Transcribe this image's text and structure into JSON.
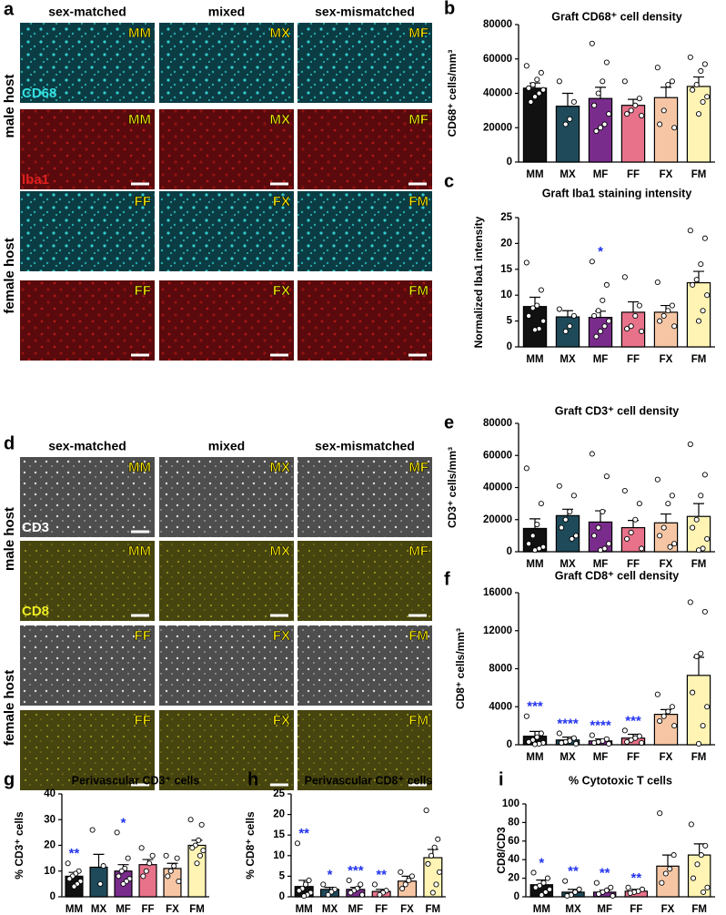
{
  "micrographs": [
    {
      "letter": "a",
      "columns": [
        "sex-matched",
        "mixed",
        "sex-mismatched"
      ],
      "rows": [
        "male host",
        "female host"
      ],
      "stains": [
        "CD68",
        "Iba1"
      ],
      "tiles": [
        [
          "MM",
          "MX",
          "MF"
        ],
        [
          "MM",
          "MX",
          "MF"
        ],
        [
          "FF",
          "FX",
          "FM"
        ],
        [
          "FF",
          "FX",
          "FM"
        ]
      ]
    },
    {
      "letter": "d",
      "columns": [
        "sex-matched",
        "mixed",
        "sex-mismatched"
      ],
      "rows": [
        "male host",
        "female host"
      ],
      "stains": [
        "CD3",
        "CD8"
      ],
      "tiles": [
        [
          "MM",
          "MX",
          "MF"
        ],
        [
          "MM",
          "MX",
          "MF"
        ],
        [
          "FF",
          "FX",
          "FM"
        ],
        [
          "FF",
          "FX",
          "FM"
        ]
      ]
    }
  ],
  "chart_data": [
    {
      "type": "bar",
      "panel": "b",
      "title": "Graft CD68⁺ cell density",
      "ylabel": "CD68⁺ cells/mm³",
      "categories": [
        "MM",
        "MX",
        "MF",
        "FF",
        "FX",
        "FM"
      ],
      "colors": [
        "#111111",
        "#1e4a5a",
        "#7a2c8c",
        "#e8728a",
        "#f6c6a4",
        "#fff4b3"
      ],
      "values": [
        43000,
        32500,
        37000,
        33000,
        37500,
        44000
      ],
      "errors": [
        3000,
        7500,
        6500,
        3500,
        6000,
        5500
      ],
      "points": [
        [
          56000,
          52000,
          48000,
          45000,
          43000,
          42000,
          40000,
          38000,
          35000
        ],
        [
          47000,
          35000,
          25000,
          22000
        ],
        [
          69000,
          58000,
          47000,
          40000,
          33000,
          28000,
          22000,
          20000,
          18000
        ],
        [
          47000,
          37000,
          33000,
          30000,
          28000,
          27000
        ],
        [
          55000,
          47000,
          45000,
          30000,
          22000,
          20000
        ],
        [
          61000,
          57000,
          53000,
          45000,
          42000,
          38000,
          35000,
          28000
        ]
      ],
      "significance": [
        null,
        null,
        null,
        null,
        null,
        null
      ],
      "ylim": [
        0,
        80000
      ],
      "yticks": [
        0,
        20000,
        40000,
        60000,
        80000
      ]
    },
    {
      "type": "bar",
      "panel": "c",
      "title": "Graft Iba1 staining intensity",
      "ylabel": "Normalized Iba1 intensity",
      "categories": [
        "MM",
        "MX",
        "MF",
        "FF",
        "FX",
        "FM"
      ],
      "colors": [
        "#111111",
        "#1e4a5a",
        "#7a2c8c",
        "#e8728a",
        "#f6c6a4",
        "#fff4b3"
      ],
      "values": [
        7.8,
        5.8,
        5.7,
        6.7,
        6.7,
        12.4
      ],
      "errors": [
        1.8,
        1.2,
        1.2,
        2,
        1.3,
        2.2
      ],
      "points": [
        [
          16.3,
          11,
          8,
          7.5,
          6,
          5,
          3.5,
          3.3
        ],
        [
          7.3,
          6,
          4,
          3
        ],
        [
          16.5,
          12,
          9,
          7,
          6,
          5,
          4,
          3,
          2
        ],
        [
          13.5,
          8,
          6,
          4,
          3.5,
          3
        ],
        [
          12.5,
          8,
          7,
          6,
          5,
          4
        ],
        [
          22.5,
          21,
          16,
          13,
          12,
          10,
          7,
          5
        ]
      ],
      "significance": [
        null,
        null,
        "*",
        null,
        null,
        null
      ],
      "ylim": [
        0,
        25
      ],
      "yticks": [
        0,
        5,
        10,
        15,
        20,
        25
      ]
    },
    {
      "type": "bar",
      "panel": "e",
      "title": "Graft CD3⁺ cell density",
      "ylabel": "CD3⁺ cells/mm³",
      "categories": [
        "MM",
        "MX",
        "MF",
        "FF",
        "FX",
        "FM"
      ],
      "colors": [
        "#111111",
        "#1e4a5a",
        "#7a2c8c",
        "#e8728a",
        "#f6c6a4",
        "#fff4b3"
      ],
      "values": [
        14500,
        22500,
        18500,
        15000,
        18000,
        22000
      ],
      "errors": [
        6000,
        4000,
        7000,
        4500,
        5500,
        8000
      ],
      "points": [
        [
          52000,
          30000,
          17000,
          10000,
          5000,
          3000,
          2000,
          1000
        ],
        [
          41000,
          35000,
          25000,
          20000,
          15000,
          10000,
          8000
        ],
        [
          61000,
          47000,
          25000,
          15000,
          10000,
          5000,
          2000,
          1000
        ],
        [
          38000,
          30000,
          20000,
          12000,
          8000,
          2000
        ],
        [
          45000,
          35000,
          30000,
          15000,
          10000,
          5000,
          3000
        ],
        [
          67000,
          48000,
          35000,
          20000,
          15000,
          8000,
          2000,
          1000
        ]
      ],
      "significance": [
        null,
        null,
        null,
        null,
        null,
        null
      ],
      "ylim": [
        0,
        80000
      ],
      "yticks": [
        0,
        20000,
        40000,
        60000,
        80000
      ]
    },
    {
      "type": "bar",
      "panel": "f",
      "title": "Graft CD8⁺ cell density",
      "ylabel": "CD8⁺ cells/mm³",
      "categories": [
        "MM",
        "MX",
        "MF",
        "FF",
        "FX",
        "FM"
      ],
      "colors": [
        "#111111",
        "#1e4a5a",
        "#7a2c8c",
        "#e8728a",
        "#f6c6a4",
        "#fff4b3"
      ],
      "values": [
        900,
        500,
        400,
        700,
        3200,
        7300
      ],
      "errors": [
        500,
        300,
        200,
        400,
        500,
        1900
      ],
      "points": [
        [
          3000,
          1200,
          800,
          500,
          300,
          200,
          100,
          50
        ],
        [
          1200,
          700,
          400,
          300,
          200,
          100
        ],
        [
          1000,
          600,
          400,
          300,
          200,
          100
        ],
        [
          1500,
          900,
          700,
          500,
          300,
          200
        ],
        [
          5300,
          4000,
          3500,
          3000,
          2500,
          2000
        ],
        [
          15000,
          14000,
          9600,
          9300,
          5500,
          4000,
          2000,
          100
        ]
      ],
      "significance": [
        "***",
        "****",
        "****",
        "***",
        null,
        null
      ],
      "ylim": [
        0,
        16000
      ],
      "yticks": [
        0,
        4000,
        8000,
        12000,
        16000
      ]
    },
    {
      "type": "bar",
      "panel": "g",
      "title": "Perivascular CD3⁺ cells",
      "ylabel": "% CD3⁺ cells",
      "categories": [
        "MM",
        "MX",
        "MF",
        "FF",
        "FX",
        "FM"
      ],
      "colors": [
        "#111111",
        "#1e4a5a",
        "#7a2c8c",
        "#e8728a",
        "#f6c6a4",
        "#fff4b3"
      ],
      "values": [
        8,
        11.5,
        10,
        12.5,
        11,
        20
      ],
      "errors": [
        1.5,
        5,
        2.5,
        2,
        2,
        2
      ],
      "points": [
        [
          13,
          10,
          9,
          8,
          7,
          6,
          5,
          4
        ],
        [
          26,
          12,
          5
        ],
        [
          25,
          15,
          11,
          10,
          8,
          7,
          6,
          5
        ],
        [
          19,
          16,
          13,
          10,
          8
        ],
        [
          16,
          15,
          12,
          10,
          8,
          6
        ],
        [
          30,
          28,
          22,
          20,
          19,
          18,
          16,
          13
        ]
      ],
      "significance": [
        "**",
        null,
        "*",
        null,
        null,
        null
      ],
      "ylim": [
        0,
        40
      ],
      "yticks": [
        0,
        10,
        20,
        30,
        40
      ]
    },
    {
      "type": "bar",
      "panel": "h",
      "title": "Perivascular CD8⁺ cells",
      "ylabel": "% CD8⁺ cells",
      "categories": [
        "MM",
        "MX",
        "MF",
        "FF",
        "FX",
        "FM"
      ],
      "colors": [
        "#111111",
        "#1e4a5a",
        "#7a2c8c",
        "#e8728a",
        "#f6c6a4",
        "#fff4b3"
      ],
      "values": [
        2.5,
        1.8,
        1.8,
        1.3,
        3.8,
        9.5
      ],
      "errors": [
        1.5,
        0.5,
        0.5,
        0.5,
        1.2,
        2
      ],
      "points": [
        [
          13,
          4,
          3,
          2,
          1.5,
          1,
          0.5,
          0.2
        ],
        [
          3,
          1.8,
          1.2,
          0.5
        ],
        [
          4,
          3,
          2,
          1.5,
          1,
          0.5
        ],
        [
          3,
          1.5,
          1,
          0.5
        ],
        [
          6,
          5,
          4,
          3,
          2
        ],
        [
          21,
          14,
          12,
          10,
          8,
          6,
          3,
          1
        ]
      ],
      "significance": [
        "**",
        "*",
        "***",
        "**",
        null,
        null
      ],
      "ylim": [
        0,
        25
      ],
      "yticks": [
        0,
        5,
        10,
        15,
        20,
        25
      ]
    },
    {
      "type": "bar",
      "panel": "i",
      "title": "% Cytotoxic T cells",
      "ylabel": "CD8/CD3",
      "categories": [
        "MM",
        "MX",
        "MF",
        "FF",
        "FX",
        "FM"
      ],
      "colors": [
        "#111111",
        "#1e4a5a",
        "#7a2c8c",
        "#e8728a",
        "#f6c6a4",
        "#fff4b3"
      ],
      "values": [
        13,
        5,
        5,
        6,
        33,
        45
      ],
      "errors": [
        5,
        3,
        2,
        2,
        12,
        12
      ],
      "points": [
        [
          26,
          20,
          15,
          12,
          10,
          8,
          5,
          2
        ],
        [
          17,
          8,
          5,
          2,
          1
        ],
        [
          15,
          10,
          7,
          5,
          3,
          1
        ],
        [
          10,
          8,
          6,
          5,
          4
        ],
        [
          90,
          45,
          30,
          25,
          15
        ],
        [
          78,
          55,
          45,
          35,
          20,
          10,
          5
        ]
      ],
      "significance": [
        "*",
        "**",
        "**",
        "**",
        null,
        null
      ],
      "ylim": [
        0,
        100
      ],
      "yticks": [
        0,
        20,
        40,
        60,
        80,
        100
      ]
    }
  ]
}
